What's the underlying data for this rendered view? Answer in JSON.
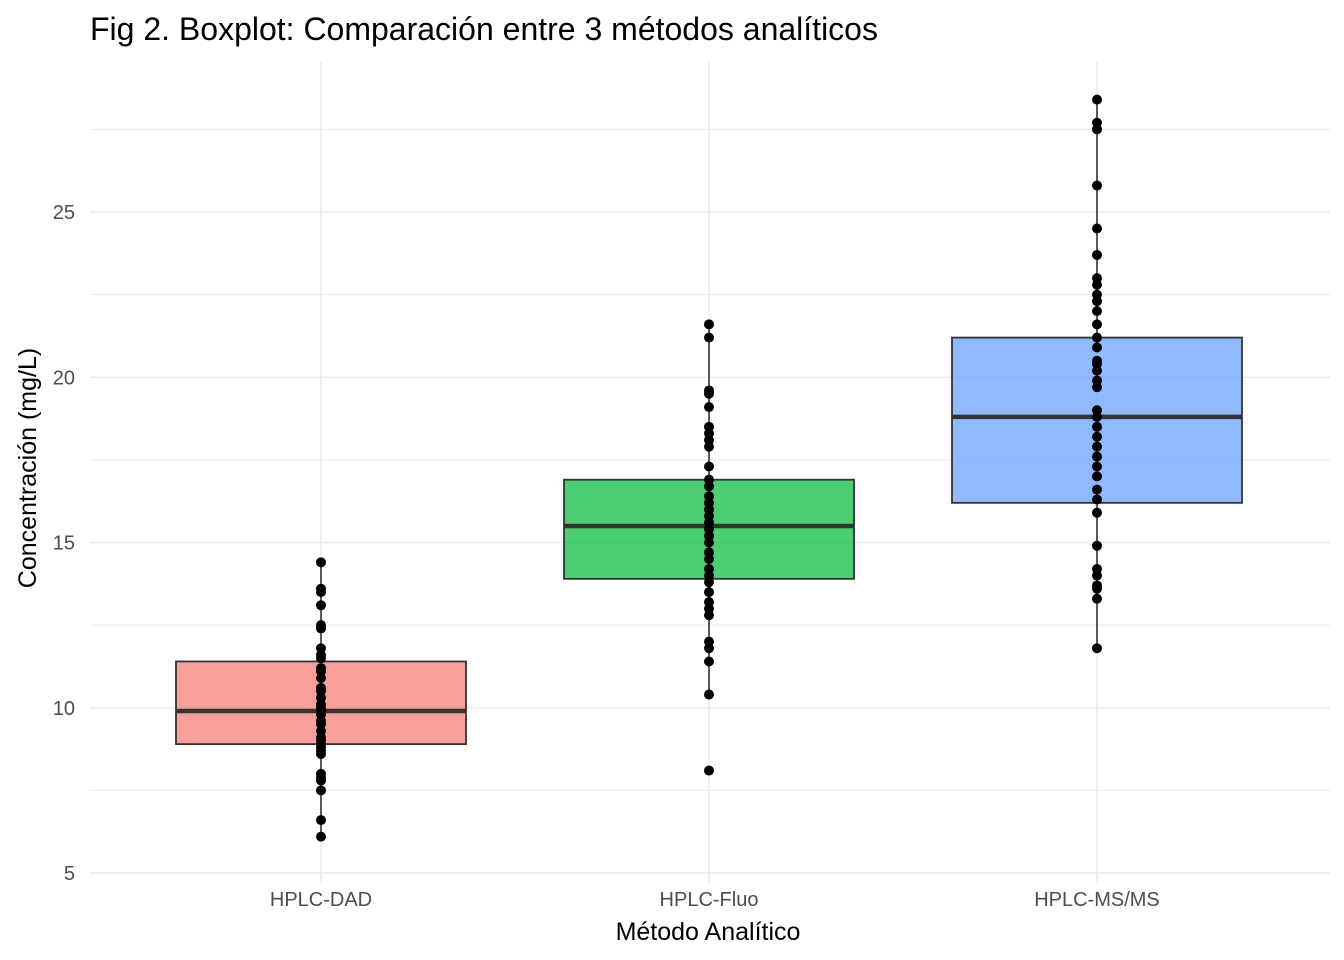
{
  "chart_data": {
    "type": "boxplot",
    "title": "Fig 2. Boxplot: Comparación entre 3 métodos analíticos",
    "xlabel": "Método Analítico",
    "ylabel": "Concentración (mg/L)",
    "ylim": [
      5,
      28.4
    ],
    "yticks": [
      5,
      10,
      15,
      20,
      25
    ],
    "grid": true,
    "legend": "none",
    "categories": [
      "HPLC-DAD",
      "HPLC-Fluo",
      "HPLC-MS/MS"
    ],
    "boxes": [
      {
        "name": "HPLC-DAD",
        "color": "#f8766d",
        "whisker_low": 6.1,
        "q1": 8.9,
        "median": 9.9,
        "q3": 11.4,
        "whisker_high": 14.4,
        "points": [
          6.1,
          6.6,
          7.5,
          7.8,
          7.9,
          8.0,
          8.6,
          8.7,
          8.8,
          8.9,
          9.0,
          9.1,
          9.3,
          9.5,
          9.6,
          9.8,
          9.9,
          10.0,
          10.1,
          10.3,
          10.5,
          10.6,
          10.9,
          11.1,
          11.2,
          11.5,
          11.6,
          11.8,
          12.4,
          12.5,
          13.1,
          13.5,
          13.6,
          14.4
        ]
      },
      {
        "name": "HPLC-Fluo",
        "color": "#00ba38",
        "whisker_low": 10.4,
        "q1": 13.9,
        "median": 15.5,
        "q3": 16.9,
        "whisker_high": 21.6,
        "points": [
          8.1,
          10.4,
          11.4,
          11.8,
          12.0,
          12.8,
          13.0,
          13.2,
          13.5,
          13.8,
          14.0,
          14.2,
          14.5,
          14.7,
          15.0,
          15.2,
          15.4,
          15.6,
          15.8,
          16.0,
          16.2,
          16.4,
          16.7,
          16.9,
          17.3,
          17.9,
          18.1,
          18.3,
          18.5,
          19.1,
          19.5,
          19.6,
          21.2,
          21.6
        ]
      },
      {
        "name": "HPLC-MS/MS",
        "color": "#619cff",
        "whisker_low": 11.8,
        "q1": 16.2,
        "median": 18.8,
        "q3": 21.2,
        "whisker_high": 28.4,
        "points": [
          11.8,
          13.3,
          13.6,
          13.7,
          14.0,
          14.2,
          14.9,
          15.9,
          16.3,
          16.6,
          17.0,
          17.3,
          17.6,
          17.9,
          18.2,
          18.5,
          18.8,
          19.0,
          19.7,
          19.9,
          20.2,
          20.4,
          20.5,
          20.9,
          21.2,
          21.6,
          22.0,
          22.3,
          22.5,
          22.8,
          23.0,
          23.7,
          24.5,
          25.8,
          27.5,
          27.7,
          28.4
        ]
      }
    ]
  }
}
